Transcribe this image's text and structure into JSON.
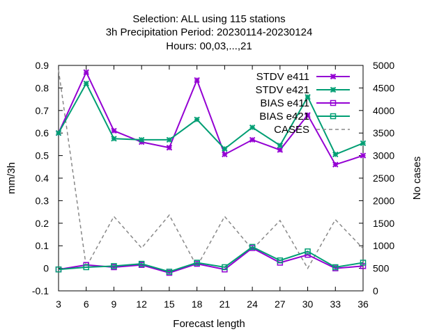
{
  "chart_data": {
    "type": "line",
    "title_lines": [
      "Selection: ALL using   115 stations",
      "3h Precipitation   Period: 20230114-20230124",
      "Hours:  00,03,...,21"
    ],
    "xlabel": "Forecast length",
    "ylabel": "mm/3h",
    "y2label": "No cases",
    "x": [
      3,
      6,
      9,
      12,
      15,
      18,
      21,
      24,
      27,
      30,
      33,
      36
    ],
    "xlim": [
      3,
      36
    ],
    "ylim": [
      -0.1,
      0.9
    ],
    "y2lim": [
      0,
      5000
    ],
    "x_ticks": [
      "3",
      "6",
      "9",
      "12",
      "15",
      "18",
      "21",
      "24",
      "27",
      "30",
      "33",
      "36"
    ],
    "y_ticks": [
      "-0.1",
      "0",
      "0.1",
      "0.2",
      "0.3",
      "0.4",
      "0.5",
      "0.6",
      "0.7",
      "0.8",
      "0.9"
    ],
    "y2_ticks": [
      "0",
      "500",
      "1000",
      "1500",
      "2000",
      "2500",
      "3000",
      "3500",
      "4000",
      "4500",
      "5000"
    ],
    "legend_position": "top-right",
    "grid": false,
    "series": [
      {
        "name": "STDV e411",
        "axis": "y",
        "color": "#9400d3",
        "marker": "x",
        "dash": false,
        "values": [
          0.6,
          0.87,
          0.61,
          0.56,
          0.535,
          0.835,
          0.505,
          0.57,
          0.525,
          0.68,
          0.46,
          0.5
        ]
      },
      {
        "name": "STDV e421",
        "axis": "y",
        "color": "#009e73",
        "marker": "x",
        "dash": false,
        "values": [
          0.6,
          0.82,
          0.575,
          0.57,
          0.57,
          0.66,
          0.53,
          0.625,
          0.545,
          0.76,
          0.505,
          0.555
        ]
      },
      {
        "name": "BIAS e411",
        "axis": "y",
        "color": "#9400d3",
        "marker": "square",
        "dash": false,
        "values": [
          -0.005,
          0.015,
          0.005,
          0.015,
          -0.02,
          0.02,
          -0.005,
          0.09,
          0.025,
          0.06,
          0.0,
          0.01
        ]
      },
      {
        "name": "BIAS e421",
        "axis": "y",
        "color": "#009e73",
        "marker": "square",
        "dash": false,
        "values": [
          -0.005,
          0.005,
          0.01,
          0.02,
          -0.015,
          0.025,
          0.005,
          0.095,
          0.035,
          0.075,
          0.005,
          0.025
        ]
      },
      {
        "name": "CASES",
        "axis": "y2",
        "color": "#888888",
        "marker": "none",
        "dash": true,
        "values": [
          4900,
          530,
          1650,
          950,
          1680,
          540,
          1650,
          920,
          1560,
          500,
          1580,
          940
        ]
      }
    ]
  }
}
